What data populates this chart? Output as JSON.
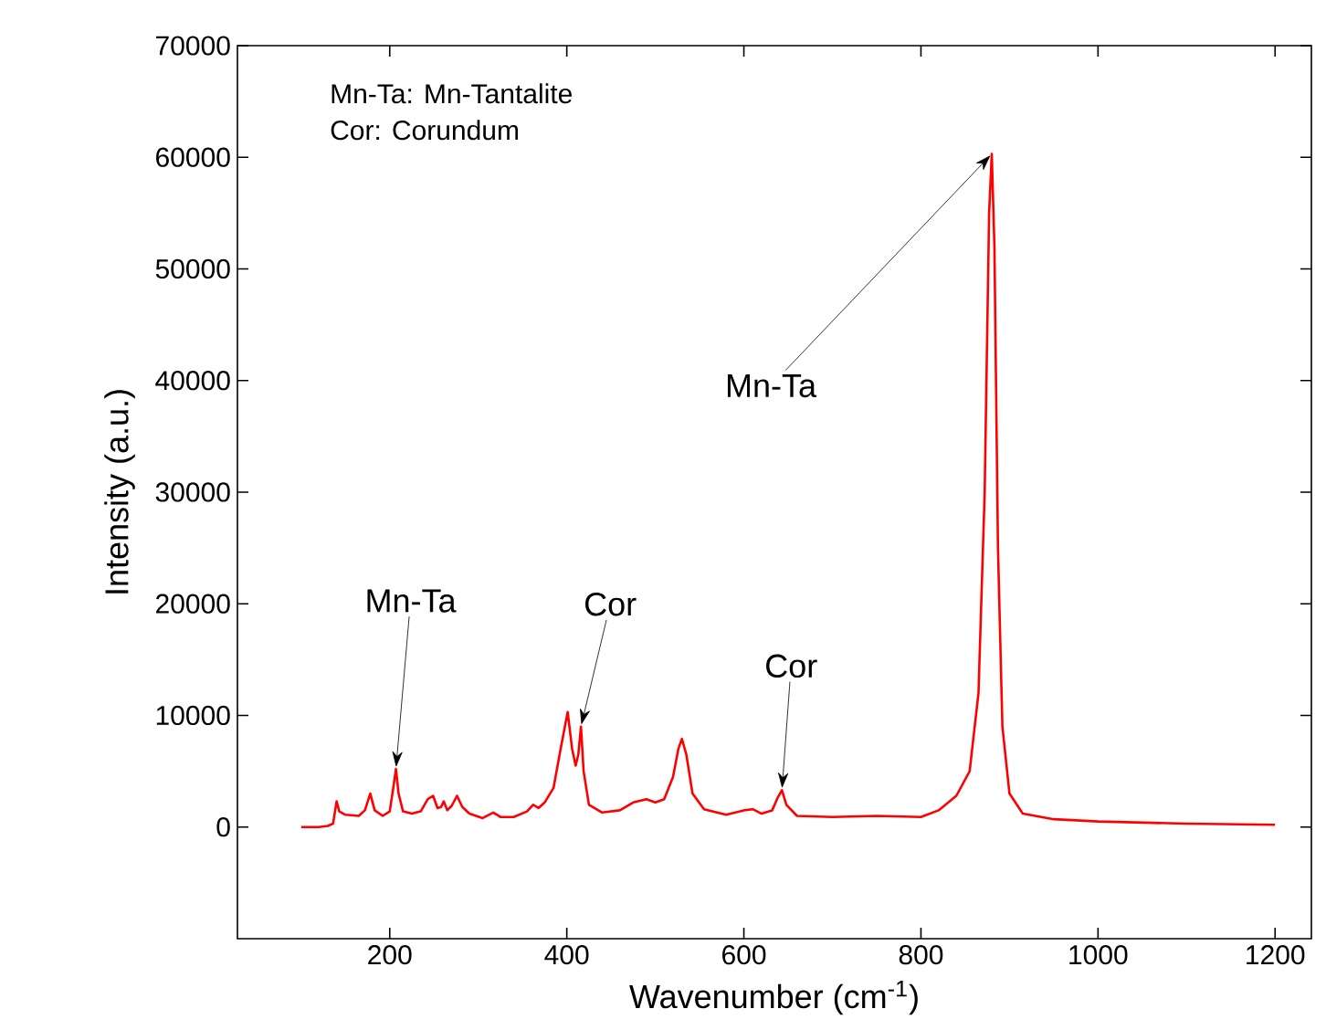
{
  "chart_data": {
    "type": "line",
    "xlabel": "Wavenumber (cm$^{-1}$)",
    "ylabel": "Intensity (a.u.)",
    "x": [
      100,
      120,
      130,
      136,
      140,
      143,
      150,
      165,
      172,
      178,
      183,
      192,
      200,
      204,
      207,
      210,
      215,
      225,
      235,
      243,
      249,
      254,
      258,
      261,
      265,
      270,
      276,
      282,
      290,
      305,
      317,
      325,
      340,
      355,
      362,
      368,
      375,
      385,
      393,
      401,
      406,
      410,
      413,
      416,
      419,
      425,
      440,
      460,
      475,
      490,
      500,
      510,
      520,
      526,
      530,
      535,
      542,
      555,
      580,
      600,
      610,
      620,
      632,
      638,
      643,
      648,
      660,
      700,
      750,
      800,
      820,
      840,
      855,
      865,
      872,
      877,
      880,
      883,
      887,
      892,
      900,
      915,
      950,
      1000,
      1100,
      1200
    ],
    "series": [
      {
        "color": "#ff0000",
        "values": [
          0,
          0,
          100,
          300,
          2300,
          1400,
          1100,
          1000,
          1500,
          3000,
          1500,
          1000,
          1400,
          3500,
          5200,
          3000,
          1400,
          1200,
          1400,
          2500,
          2800,
          1700,
          1800,
          2300,
          1500,
          1900,
          2800,
          1800,
          1200,
          800,
          1300,
          900,
          900,
          1400,
          2000,
          1700,
          2200,
          3500,
          7000,
          10300,
          7000,
          5500,
          6500,
          9000,
          5000,
          2000,
          1300,
          1500,
          2200,
          2500,
          2200,
          2500,
          4500,
          7000,
          7900,
          6500,
          3000,
          1600,
          1100,
          1500,
          1600,
          1200,
          1500,
          2600,
          3300,
          2000,
          1000,
          900,
          1000,
          900,
          1500,
          2800,
          5000,
          12000,
          30000,
          55000,
          60300,
          52000,
          25000,
          9000,
          3000,
          1200,
          700,
          500,
          300,
          200
        ]
      }
    ],
    "xlim": [
      28,
      1241
    ],
    "ylim": [
      -10000,
      70000
    ],
    "xticks": [
      200,
      400,
      600,
      800,
      1000,
      1200
    ],
    "yticks": [
      0,
      10000,
      20000,
      30000,
      40000,
      50000,
      60000,
      70000
    ],
    "marker": "none",
    "line_style": "solid",
    "annotations": [
      "Mn-Ta: Mn-Tantalite",
      "Cor: Corundum",
      {
        "text": "Mn-Ta",
        "x": 207,
        "y": 5200
      },
      {
        "text": "Cor",
        "x": 416,
        "y": 9000
      },
      {
        "text": "Mn-Ta",
        "x": 880,
        "y": 60300
      },
      {
        "text": "Cor",
        "x": 643,
        "y": 3300
      }
    ]
  }
}
